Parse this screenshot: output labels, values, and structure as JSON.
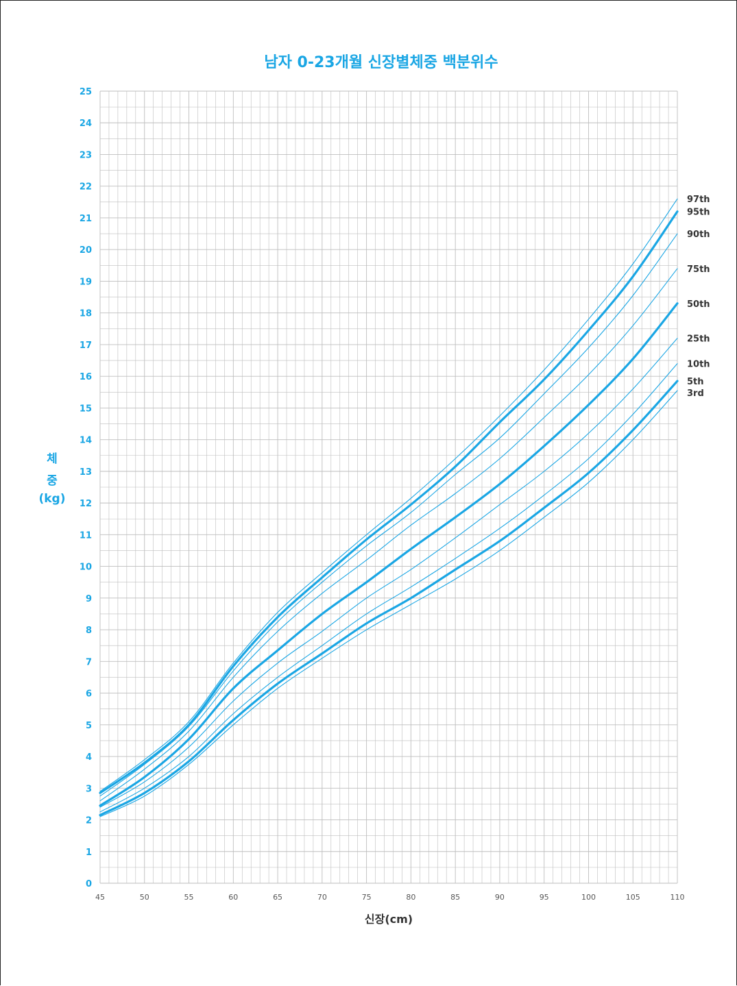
{
  "colors": {
    "accent": "#1aa6e4",
    "grid": "#bdbdbd",
    "label": "#333333",
    "x_tick": "#555555"
  },
  "chart_data": {
    "type": "line",
    "title": "남자 0-23개월 신장별체중 백분위수",
    "xlabel": "신장(cm)",
    "ylabel_lines": [
      "체",
      "중",
      "(kg)"
    ],
    "xlim": [
      45,
      110
    ],
    "ylim": [
      0,
      25
    ],
    "x_ticks": [
      "45",
      "50",
      "55",
      "60",
      "65",
      "70",
      "75",
      "80",
      "85",
      "90",
      "95",
      "100",
      "105",
      "110"
    ],
    "y_ticks": [
      "0",
      "1",
      "2",
      "3",
      "4",
      "5",
      "6",
      "7",
      "8",
      "9",
      "10",
      "11",
      "12",
      "13",
      "14",
      "15",
      "16",
      "17",
      "18",
      "19",
      "20",
      "21",
      "22",
      "23",
      "24",
      "25"
    ],
    "grid": true,
    "x": [
      45,
      50,
      55,
      60,
      65,
      70,
      75,
      80,
      85,
      90,
      95,
      100,
      105,
      110
    ],
    "series": [
      {
        "name": "3rd",
        "bold": false,
        "values": [
          2.1,
          2.75,
          3.75,
          5.0,
          6.15,
          7.1,
          8.0,
          8.8,
          9.6,
          10.5,
          11.55,
          12.65,
          14.0,
          15.55
        ]
      },
      {
        "name": "5th",
        "bold": true,
        "values": [
          2.15,
          2.85,
          3.85,
          5.15,
          6.3,
          7.25,
          8.2,
          9.0,
          9.9,
          10.8,
          11.85,
          12.95,
          14.3,
          15.85
        ]
      },
      {
        "name": "10th",
        "bold": false,
        "values": [
          2.25,
          3.0,
          4.0,
          5.35,
          6.5,
          7.5,
          8.5,
          9.35,
          10.25,
          11.2,
          12.25,
          13.4,
          14.8,
          16.4
        ]
      },
      {
        "name": "25th",
        "bold": false,
        "values": [
          2.4,
          3.2,
          4.3,
          5.75,
          6.95,
          7.95,
          9.0,
          9.9,
          10.9,
          11.95,
          13.0,
          14.2,
          15.6,
          17.2
        ]
      },
      {
        "name": "50th",
        "bold": true,
        "values": [
          2.45,
          3.35,
          4.55,
          6.15,
          7.35,
          8.5,
          9.5,
          10.55,
          11.55,
          12.6,
          13.8,
          15.1,
          16.55,
          18.3
        ]
      },
      {
        "name": "75th",
        "bold": false,
        "values": [
          2.6,
          3.6,
          4.8,
          6.5,
          7.95,
          9.15,
          10.2,
          11.3,
          12.3,
          13.4,
          14.7,
          16.05,
          17.6,
          19.4
        ]
      },
      {
        "name": "90th",
        "bold": false,
        "values": [
          2.75,
          3.75,
          4.95,
          6.7,
          8.25,
          9.5,
          10.65,
          11.7,
          12.9,
          14.05,
          15.45,
          16.9,
          18.55,
          20.5
        ]
      },
      {
        "name": "95th",
        "bold": true,
        "values": [
          2.85,
          3.8,
          5.0,
          6.85,
          8.4,
          9.65,
          10.85,
          11.95,
          13.15,
          14.55,
          15.9,
          17.45,
          19.15,
          21.2
        ]
      },
      {
        "name": "97th",
        "bold": false,
        "values": [
          2.9,
          3.9,
          5.1,
          6.95,
          8.55,
          9.8,
          11.0,
          12.15,
          13.4,
          14.75,
          16.2,
          17.8,
          19.55,
          21.6
        ]
      }
    ]
  }
}
